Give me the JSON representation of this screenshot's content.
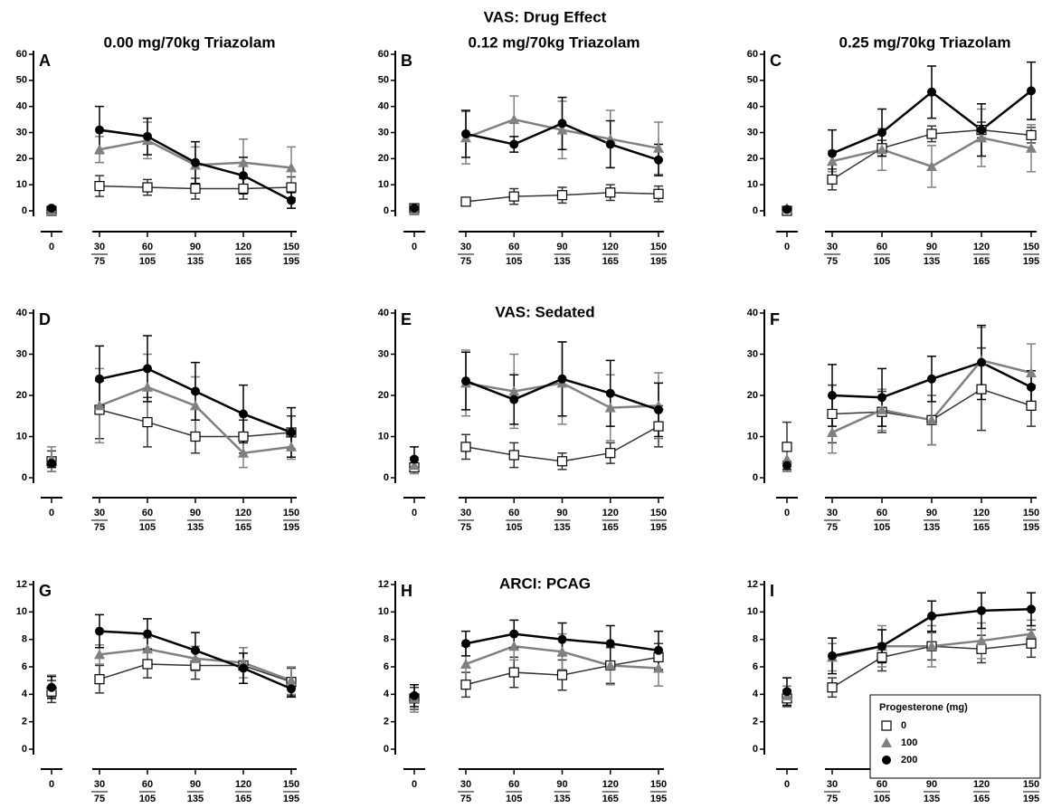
{
  "chart_data": [
    {
      "type": "line",
      "label": "A",
      "title": "0.00 mg/70kg Triazolam",
      "categories": [
        "0",
        "30",
        "60",
        "90",
        "120",
        "150"
      ],
      "category_sublabels": [
        null,
        "75",
        "105",
        "135",
        "165",
        "195"
      ],
      "ylim": [
        0,
        60
      ],
      "yticks": [
        0,
        10,
        20,
        30,
        40,
        50,
        60
      ],
      "series": [
        {
          "marker": "square",
          "color": "#333333",
          "values": [
            0,
            9.5,
            9,
            8.5,
            8.5,
            9
          ],
          "errors": [
            0,
            4,
            3,
            4,
            4,
            4
          ]
        },
        {
          "marker": "triangle",
          "color": "#808080",
          "values": [
            0,
            23.5,
            27,
            17.5,
            18.5,
            16.5
          ],
          "errors": [
            0,
            5,
            7,
            7,
            9,
            8
          ]
        },
        {
          "marker": "circle",
          "color": "#000000",
          "values": [
            1,
            31,
            28.5,
            18.5,
            13.5,
            4
          ],
          "errors": [
            0,
            9,
            7,
            8,
            7,
            3
          ]
        }
      ]
    },
    {
      "type": "line",
      "label": "B",
      "heading": "VAS: Drug Effect",
      "title": "0.12 mg/70kg Triazolam",
      "categories": [
        "0",
        "30",
        "60",
        "90",
        "120",
        "150"
      ],
      "category_sublabels": [
        null,
        "75",
        "105",
        "135",
        "165",
        "195"
      ],
      "ylim": [
        0,
        60
      ],
      "yticks": [
        0,
        10,
        20,
        30,
        40,
        50,
        60
      ],
      "series": [
        {
          "marker": "square",
          "color": "#333333",
          "values": [
            1,
            3.5,
            5.5,
            6,
            7,
            6.5
          ],
          "errors": [
            0,
            1,
            3,
            3,
            3,
            3
          ]
        },
        {
          "marker": "triangle",
          "color": "#808080",
          "values": [
            0,
            28,
            35,
            31,
            27.5,
            24
          ],
          "errors": [
            0,
            10,
            9,
            11,
            11,
            10
          ]
        },
        {
          "marker": "circle",
          "color": "#000000",
          "values": [
            1,
            29.5,
            25.5,
            33.5,
            25.5,
            19.5
          ],
          "errors": [
            0,
            9,
            3,
            10,
            9,
            6
          ]
        }
      ]
    },
    {
      "type": "line",
      "label": "C",
      "title": "0.25 mg/70kg Triazolam",
      "categories": [
        "0",
        "30",
        "60",
        "90",
        "120",
        "150"
      ],
      "category_sublabels": [
        null,
        "75",
        "105",
        "135",
        "165",
        "195"
      ],
      "ylim": [
        0,
        60
      ],
      "yticks": [
        0,
        10,
        20,
        30,
        40,
        50,
        60
      ],
      "series": [
        {
          "marker": "square",
          "color": "#333333",
          "values": [
            0,
            12,
            24,
            29.5,
            31,
            29
          ],
          "errors": [
            0,
            4,
            3,
            3,
            3,
            3
          ]
        },
        {
          "marker": "triangle",
          "color": "#808080",
          "values": [
            1,
            19,
            23.5,
            17,
            28,
            24
          ],
          "errors": [
            0,
            4,
            8,
            8,
            11,
            9
          ]
        },
        {
          "marker": "circle",
          "color": "#000000",
          "values": [
            0.5,
            22,
            30,
            45.5,
            31,
            46
          ],
          "errors": [
            0,
            9,
            9,
            10,
            10,
            11
          ]
        }
      ]
    },
    {
      "type": "line",
      "label": "D",
      "categories": [
        "0",
        "30",
        "60",
        "90",
        "120",
        "150"
      ],
      "category_sublabels": [
        null,
        "75",
        "105",
        "135",
        "165",
        "195"
      ],
      "ylim": [
        0,
        40
      ],
      "yticks": [
        0,
        10,
        20,
        30,
        40
      ],
      "series": [
        {
          "marker": "square",
          "color": "#333333",
          "values": [
            4,
            16.5,
            13.5,
            10,
            10,
            11
          ],
          "errors": [
            2.5,
            7,
            6,
            4,
            4,
            4
          ]
        },
        {
          "marker": "triangle",
          "color": "#808080",
          "values": [
            4.5,
            17.5,
            22,
            17.5,
            6,
            7.5
          ],
          "errors": [
            3,
            9,
            8,
            7,
            3.5,
            3
          ]
        },
        {
          "marker": "circle",
          "color": "#000000",
          "values": [
            3.5,
            24,
            26.5,
            21,
            15.5,
            11
          ],
          "errors": [
            1,
            8,
            8,
            7,
            7,
            6
          ]
        }
      ]
    },
    {
      "type": "line",
      "label": "E",
      "heading": "VAS: Sedated",
      "categories": [
        "0",
        "30",
        "60",
        "90",
        "120",
        "150"
      ],
      "category_sublabels": [
        null,
        "75",
        "105",
        "135",
        "165",
        "195"
      ],
      "ylim": [
        0,
        40
      ],
      "yticks": [
        0,
        10,
        20,
        30,
        40
      ],
      "series": [
        {
          "marker": "square",
          "color": "#333333",
          "values": [
            2.5,
            7.5,
            5.5,
            4,
            6,
            12.5
          ],
          "errors": [
            1,
            3,
            3,
            2,
            2.5,
            5
          ]
        },
        {
          "marker": "triangle",
          "color": "#808080",
          "values": [
            3,
            23,
            21,
            23,
            17,
            17.5
          ],
          "errors": [
            2,
            8,
            9,
            10,
            8,
            8
          ]
        },
        {
          "marker": "circle",
          "color": "#000000",
          "values": [
            4.5,
            23.5,
            19,
            24,
            20.5,
            16.5
          ],
          "errors": [
            3,
            7,
            6,
            9,
            8,
            6.5
          ]
        }
      ]
    },
    {
      "type": "line",
      "label": "F",
      "categories": [
        "0",
        "30",
        "60",
        "90",
        "120",
        "150"
      ],
      "category_sublabels": [
        null,
        "75",
        "105",
        "135",
        "165",
        "195"
      ],
      "ylim": [
        0,
        40
      ],
      "yticks": [
        0,
        10,
        20,
        30,
        40
      ],
      "series": [
        {
          "marker": "square",
          "color": "#333333",
          "values": [
            7.5,
            15.5,
            16,
            14,
            21.5,
            17.5
          ],
          "errors": [
            6,
            7,
            5,
            6,
            10,
            5
          ]
        },
        {
          "marker": "triangle",
          "color": "#808080",
          "values": [
            4.5,
            11,
            16.5,
            14,
            28.5,
            25.5
          ],
          "errors": [
            3,
            5,
            5,
            6,
            8,
            7
          ]
        },
        {
          "marker": "circle",
          "color": "#000000",
          "values": [
            3,
            20,
            19.5,
            24,
            28,
            22
          ],
          "errors": [
            1,
            7.5,
            7,
            5.5,
            9,
            4
          ]
        }
      ]
    },
    {
      "type": "line",
      "label": "G",
      "categories": [
        "0",
        "30",
        "60",
        "90",
        "120",
        "150"
      ],
      "category_sublabels": [
        null,
        "75",
        "105",
        "135",
        "165",
        "195"
      ],
      "ylim": [
        0,
        12
      ],
      "yticks": [
        0,
        2,
        4,
        6,
        8,
        10,
        12
      ],
      "series": [
        {
          "marker": "square",
          "color": "#333333",
          "values": [
            4.2,
            5.1,
            6.2,
            6.1,
            6.1,
            4.9
          ],
          "errors": [
            0.8,
            1,
            1,
            1,
            1.3,
            1
          ]
        },
        {
          "marker": "triangle",
          "color": "#808080",
          "values": [
            4.6,
            6.9,
            7.3,
            6.6,
            6.3,
            5.0
          ],
          "errors": [
            0.8,
            0.7,
            0.8,
            0.9,
            1.1,
            1
          ]
        },
        {
          "marker": "circle",
          "color": "#000000",
          "values": [
            4.5,
            8.6,
            8.4,
            7.2,
            5.9,
            4.4
          ],
          "errors": [
            0.8,
            1.2,
            1.1,
            1.3,
            1.1,
            0.6
          ]
        }
      ]
    },
    {
      "type": "line",
      "label": "H",
      "heading": "ARCI: PCAG",
      "categories": [
        "0",
        "30",
        "60",
        "90",
        "120",
        "150"
      ],
      "category_sublabels": [
        null,
        "75",
        "105",
        "135",
        "165",
        "195"
      ],
      "ylim": [
        0,
        12
      ],
      "yticks": [
        0,
        2,
        4,
        6,
        8,
        10,
        12
      ],
      "series": [
        {
          "marker": "square",
          "color": "#333333",
          "values": [
            3.7,
            4.7,
            5.6,
            5.4,
            6.1,
            6.7
          ],
          "errors": [
            0.8,
            0.9,
            1.1,
            1.1,
            1.3,
            1
          ]
        },
        {
          "marker": "triangle",
          "color": "#808080",
          "values": [
            3.7,
            6.2,
            7.5,
            7.1,
            6.1,
            5.9
          ],
          "errors": [
            1,
            1.3,
            1,
            1.3,
            1.4,
            1.3
          ]
        },
        {
          "marker": "circle",
          "color": "#000000",
          "values": [
            3.9,
            7.7,
            8.4,
            8.0,
            7.7,
            7.2
          ],
          "errors": [
            0.8,
            0.9,
            1,
            1.2,
            1.3,
            1.4
          ]
        }
      ]
    },
    {
      "type": "line",
      "label": "I",
      "legend_title": "Progesterone (mg)",
      "categories": [
        "0",
        "30",
        "60",
        "90",
        "120",
        "150"
      ],
      "category_sublabels": [
        null,
        "75",
        "105",
        "135",
        "165",
        "195"
      ],
      "ylim": [
        0,
        12
      ],
      "yticks": [
        0,
        2,
        4,
        6,
        8,
        10,
        12
      ],
      "series": [
        {
          "name": "0",
          "marker": "square",
          "color": "#333333",
          "values": [
            3.7,
            4.5,
            6.7,
            7.5,
            7.3,
            7.7
          ],
          "errors": [
            0.6,
            0.7,
            1,
            1,
            1,
            1
          ]
        },
        {
          "name": "100",
          "marker": "triangle",
          "color": "#808080",
          "values": [
            3.9,
            6.7,
            7.5,
            7.5,
            7.9,
            8.4
          ],
          "errors": [
            0.7,
            1,
            1.5,
            1.5,
            1.3,
            1
          ]
        },
        {
          "name": "200",
          "marker": "circle",
          "color": "#000000",
          "values": [
            4.2,
            6.8,
            7.5,
            9.7,
            10.1,
            10.2
          ],
          "errors": [
            1,
            1.3,
            1.2,
            1.1,
            1.3,
            1.2
          ]
        }
      ]
    }
  ]
}
